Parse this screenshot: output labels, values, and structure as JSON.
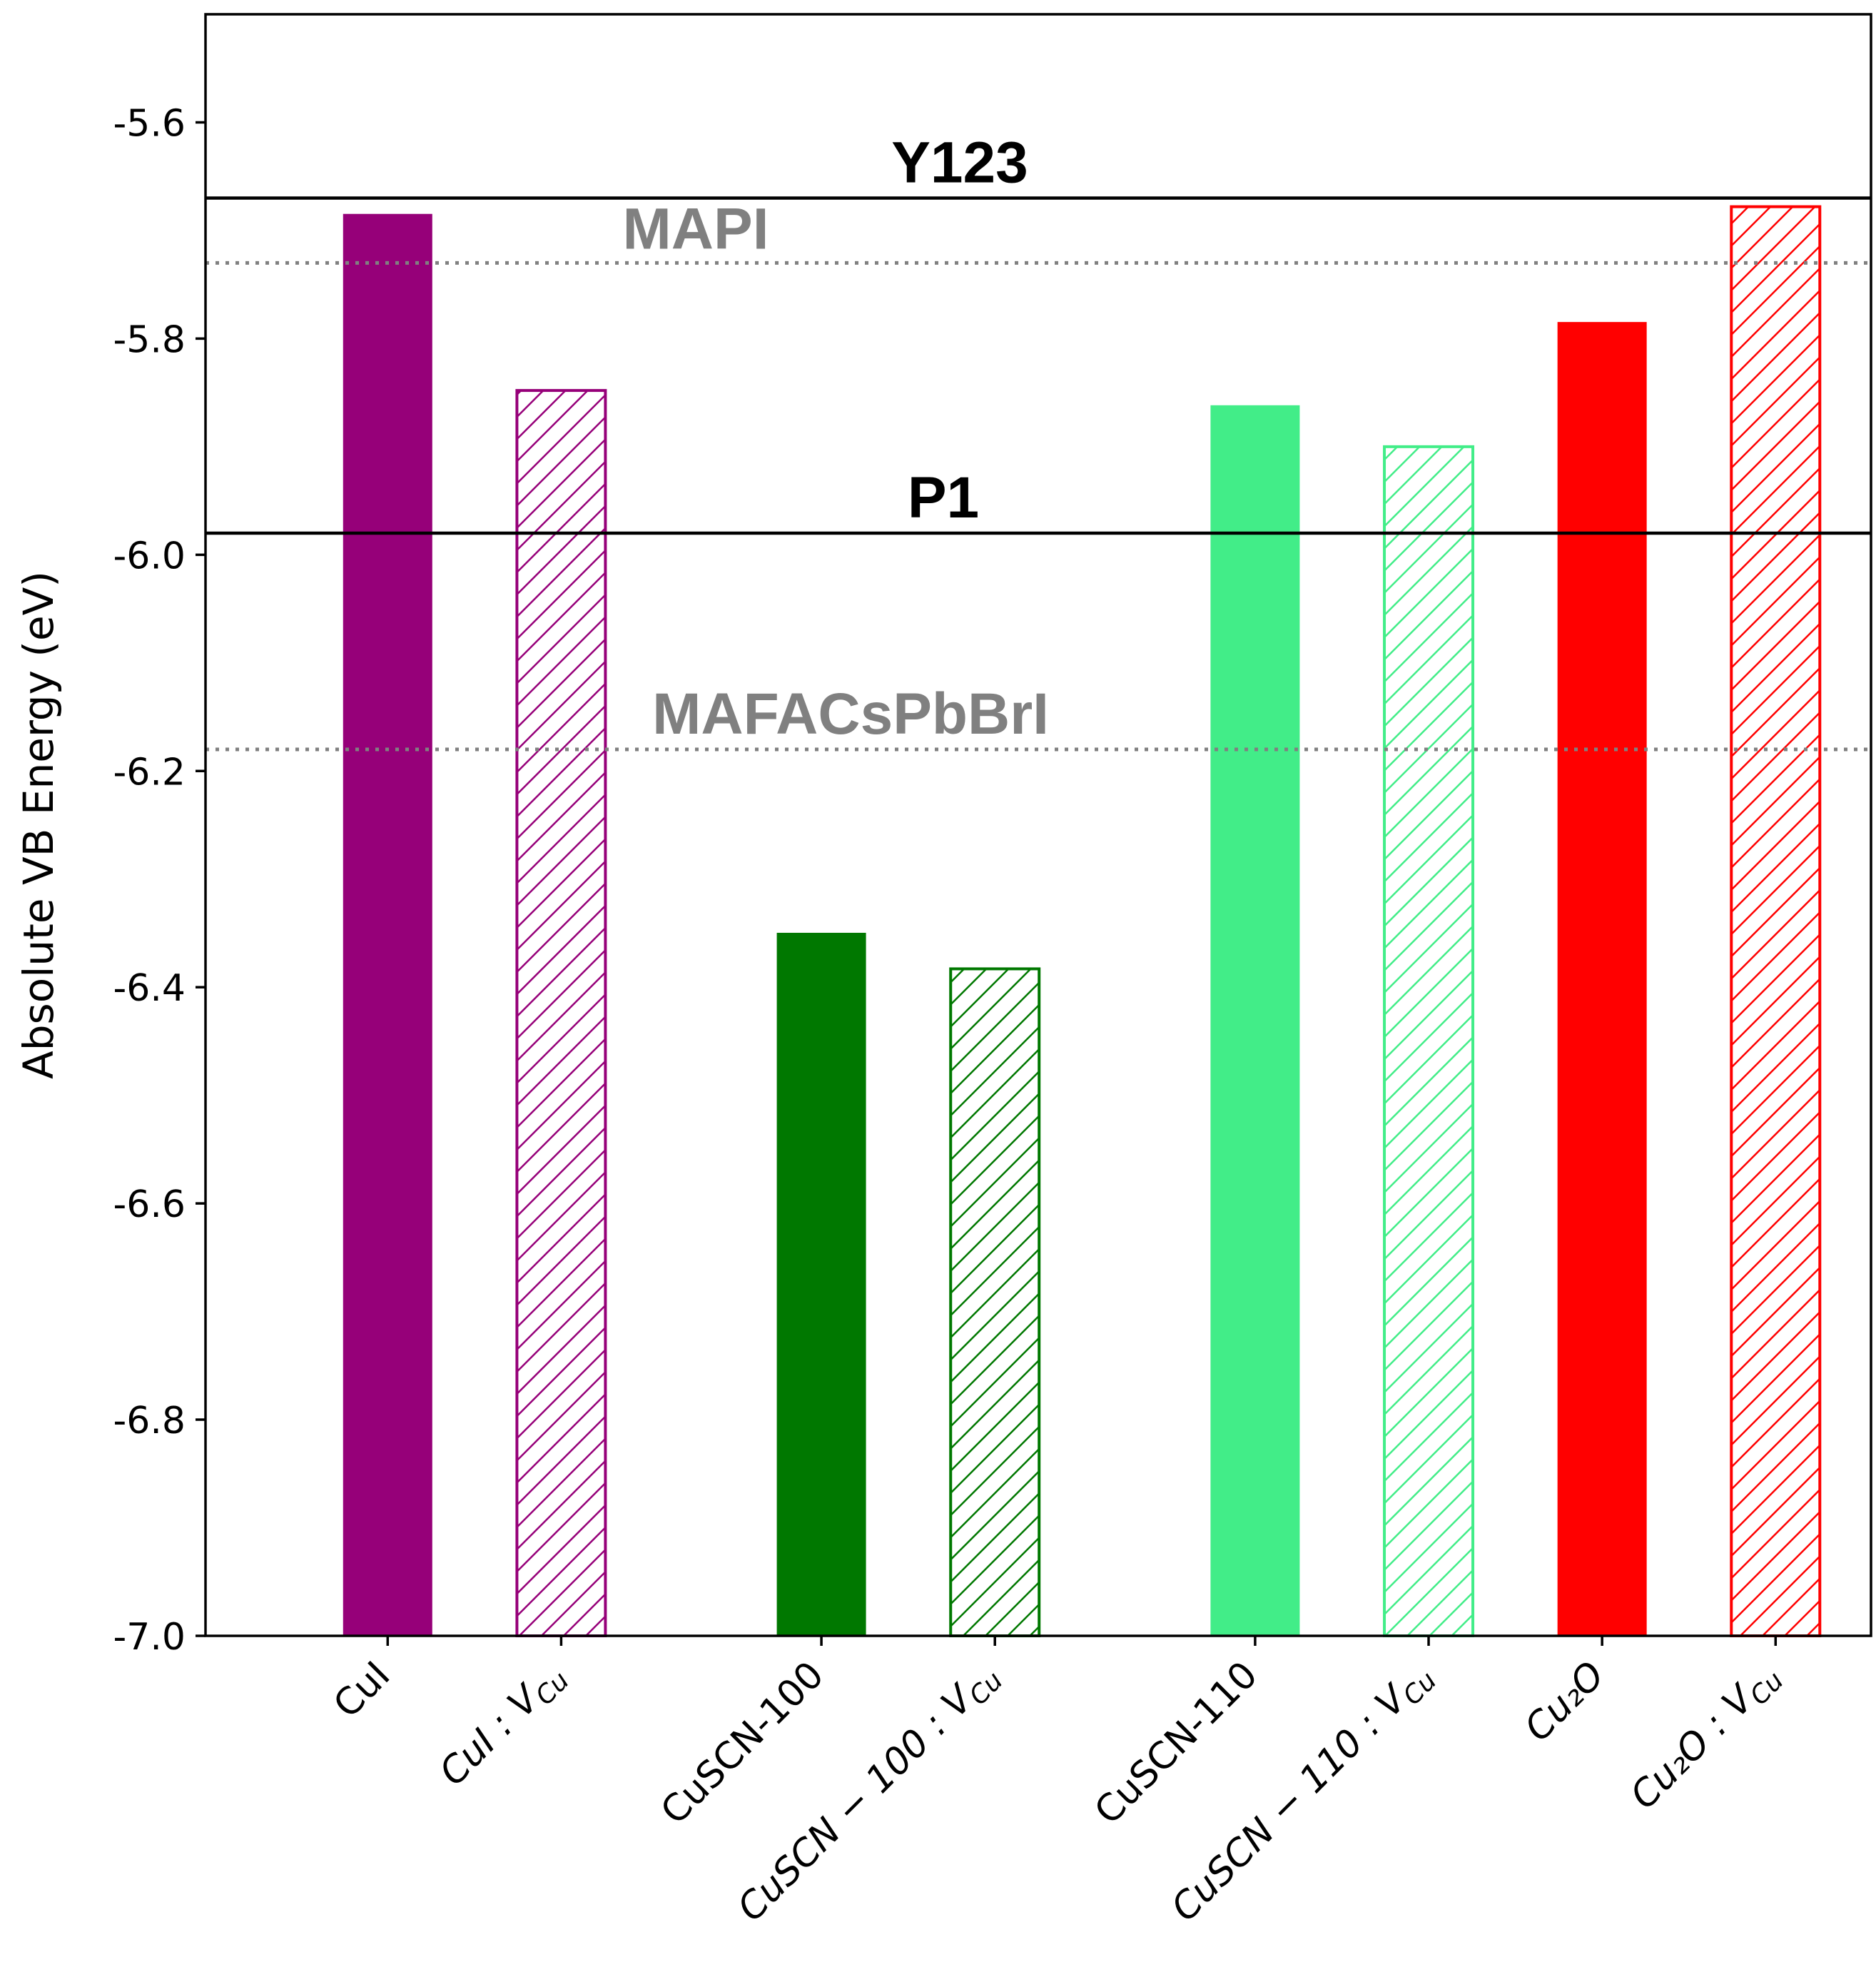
{
  "chart_data": {
    "type": "bar",
    "title": "",
    "xlabel": "",
    "ylabel": "Absolute VB Energy (eV)",
    "ylim": [
      -7.0,
      -5.5
    ],
    "yticks": [
      "-5.6",
      "-5.8",
      "-6.0",
      "-6.2",
      "-6.4",
      "-6.6",
      "-6.8",
      "-7.0"
    ],
    "ytick_values": [
      -5.6,
      -5.8,
      -6.0,
      -6.2,
      -6.4,
      -6.6,
      -6.8,
      -7.0
    ],
    "grid": false,
    "bars": [
      {
        "label": "CuI",
        "value": -5.685,
        "color": "#960079",
        "hatched": false,
        "italic": false
      },
      {
        "label": "CuI : V_Cu",
        "value": -5.848,
        "color": "#960079",
        "hatched": true,
        "italic": true
      },
      {
        "label": "CuSCN-100",
        "value": -6.35,
        "color": "#007800",
        "hatched": false,
        "italic": false
      },
      {
        "label": "CuSCN − 100 : V_Cu",
        "value": -6.383,
        "color": "#007800",
        "hatched": true,
        "italic": true
      },
      {
        "label": "CuSCN-110",
        "value": -5.862,
        "color": "#42ed88",
        "hatched": false,
        "italic": false
      },
      {
        "label": "CuSCN − 110 : V_Cu",
        "value": -5.9,
        "color": "#42ed88",
        "hatched": true,
        "italic": true
      },
      {
        "label": "Cu₂O",
        "value": -5.785,
        "color": "#ff0000",
        "hatched": false,
        "italic": true
      },
      {
        "label": "Cu₂O : V_Cu",
        "value": -5.678,
        "color": "#ff0000",
        "hatched": true,
        "italic": true
      }
    ],
    "bar_positions": [
      0,
      1,
      2.5,
      3.5,
      5,
      6,
      7,
      8
    ],
    "xlim": [
      -1.05,
      8.55
    ],
    "reference_lines": [
      {
        "label": "Y123",
        "value": -5.67,
        "style": "solid",
        "color": "#000000"
      },
      {
        "label": "MAPI",
        "value": -5.73,
        "style": "dotted",
        "color": "#808080"
      },
      {
        "label": "P1",
        "value": -5.98,
        "style": "solid",
        "color": "#000000"
      },
      {
        "label": "MAFACsPbBrI",
        "value": -6.18,
        "style": "dotted",
        "color": "#808080"
      }
    ]
  }
}
